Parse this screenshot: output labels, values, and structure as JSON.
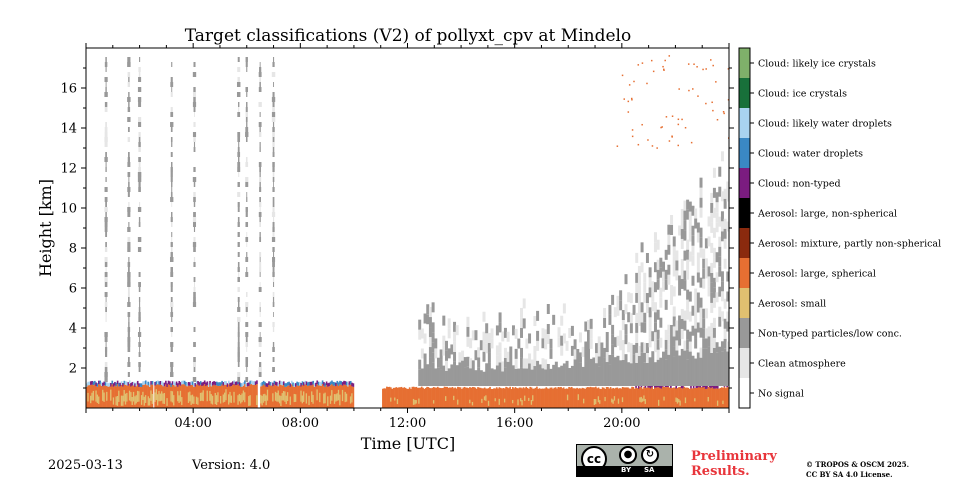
{
  "chart_data": {
    "type": "heatmap",
    "title": "Target classifications (V2) of pollyxt_cpv at Mindelo",
    "xlabel": "Time [UTC]",
    "ylabel": "Height [km]",
    "xlim_hours": [
      0,
      24
    ],
    "ylim_km": [
      0,
      18
    ],
    "x_ticks": [
      "04:00",
      "08:00",
      "12:00",
      "16:00",
      "20:00"
    ],
    "y_ticks": [
      "2",
      "4",
      "6",
      "8",
      "10",
      "12",
      "14",
      "16"
    ],
    "legend_placement": "right colorbar",
    "classes": [
      {
        "label": "Cloud: likely ice crystals",
        "color": "#7fb06a"
      },
      {
        "label": "Cloud: ice crystals",
        "color": "#18703a"
      },
      {
        "label": "Cloud: likely water droplets",
        "color": "#a9d3f0"
      },
      {
        "label": "Cloud: water droplets",
        "color": "#3a88c4"
      },
      {
        "label": "Cloud: non-typed",
        "color": "#7b1c80"
      },
      {
        "label": "Aerosol: large, non-spherical",
        "color": "#000000"
      },
      {
        "label": "Aerosol: mixture, partly non-spherical",
        "color": "#8a2a0e"
      },
      {
        "label": "Aerosol: large, spherical",
        "color": "#e66f32"
      },
      {
        "label": "Aerosol: small",
        "color": "#e0c070"
      },
      {
        "label": "Non-typed particles/low conc.",
        "color": "#999999"
      },
      {
        "label": "Clean atmosphere",
        "color": "#e6e6e6"
      },
      {
        "label": "No signal",
        "color": "#ffffff"
      }
    ],
    "no_data_gaps_utc": [
      [
        10.0,
        11.05
      ]
    ],
    "cloud_columns_utc": [
      0.75,
      1.6,
      2.0,
      3.2,
      4.05,
      5.7,
      6.0,
      6.5,
      7.0
    ],
    "high_thin_layer_utc": [
      19.8,
      24.0
    ]
  },
  "footer": {
    "date": "2025-03-13",
    "version": "Version: 4.0",
    "preliminary_line1": "Preliminary",
    "preliminary_line2": "Results.",
    "license_line1": "© TROPOS & OSCM 2025.",
    "license_line2": "CC BY SA 4.0 License.",
    "cc_logo_text": "cc",
    "cc_by": "BY",
    "cc_sa": "SA"
  }
}
